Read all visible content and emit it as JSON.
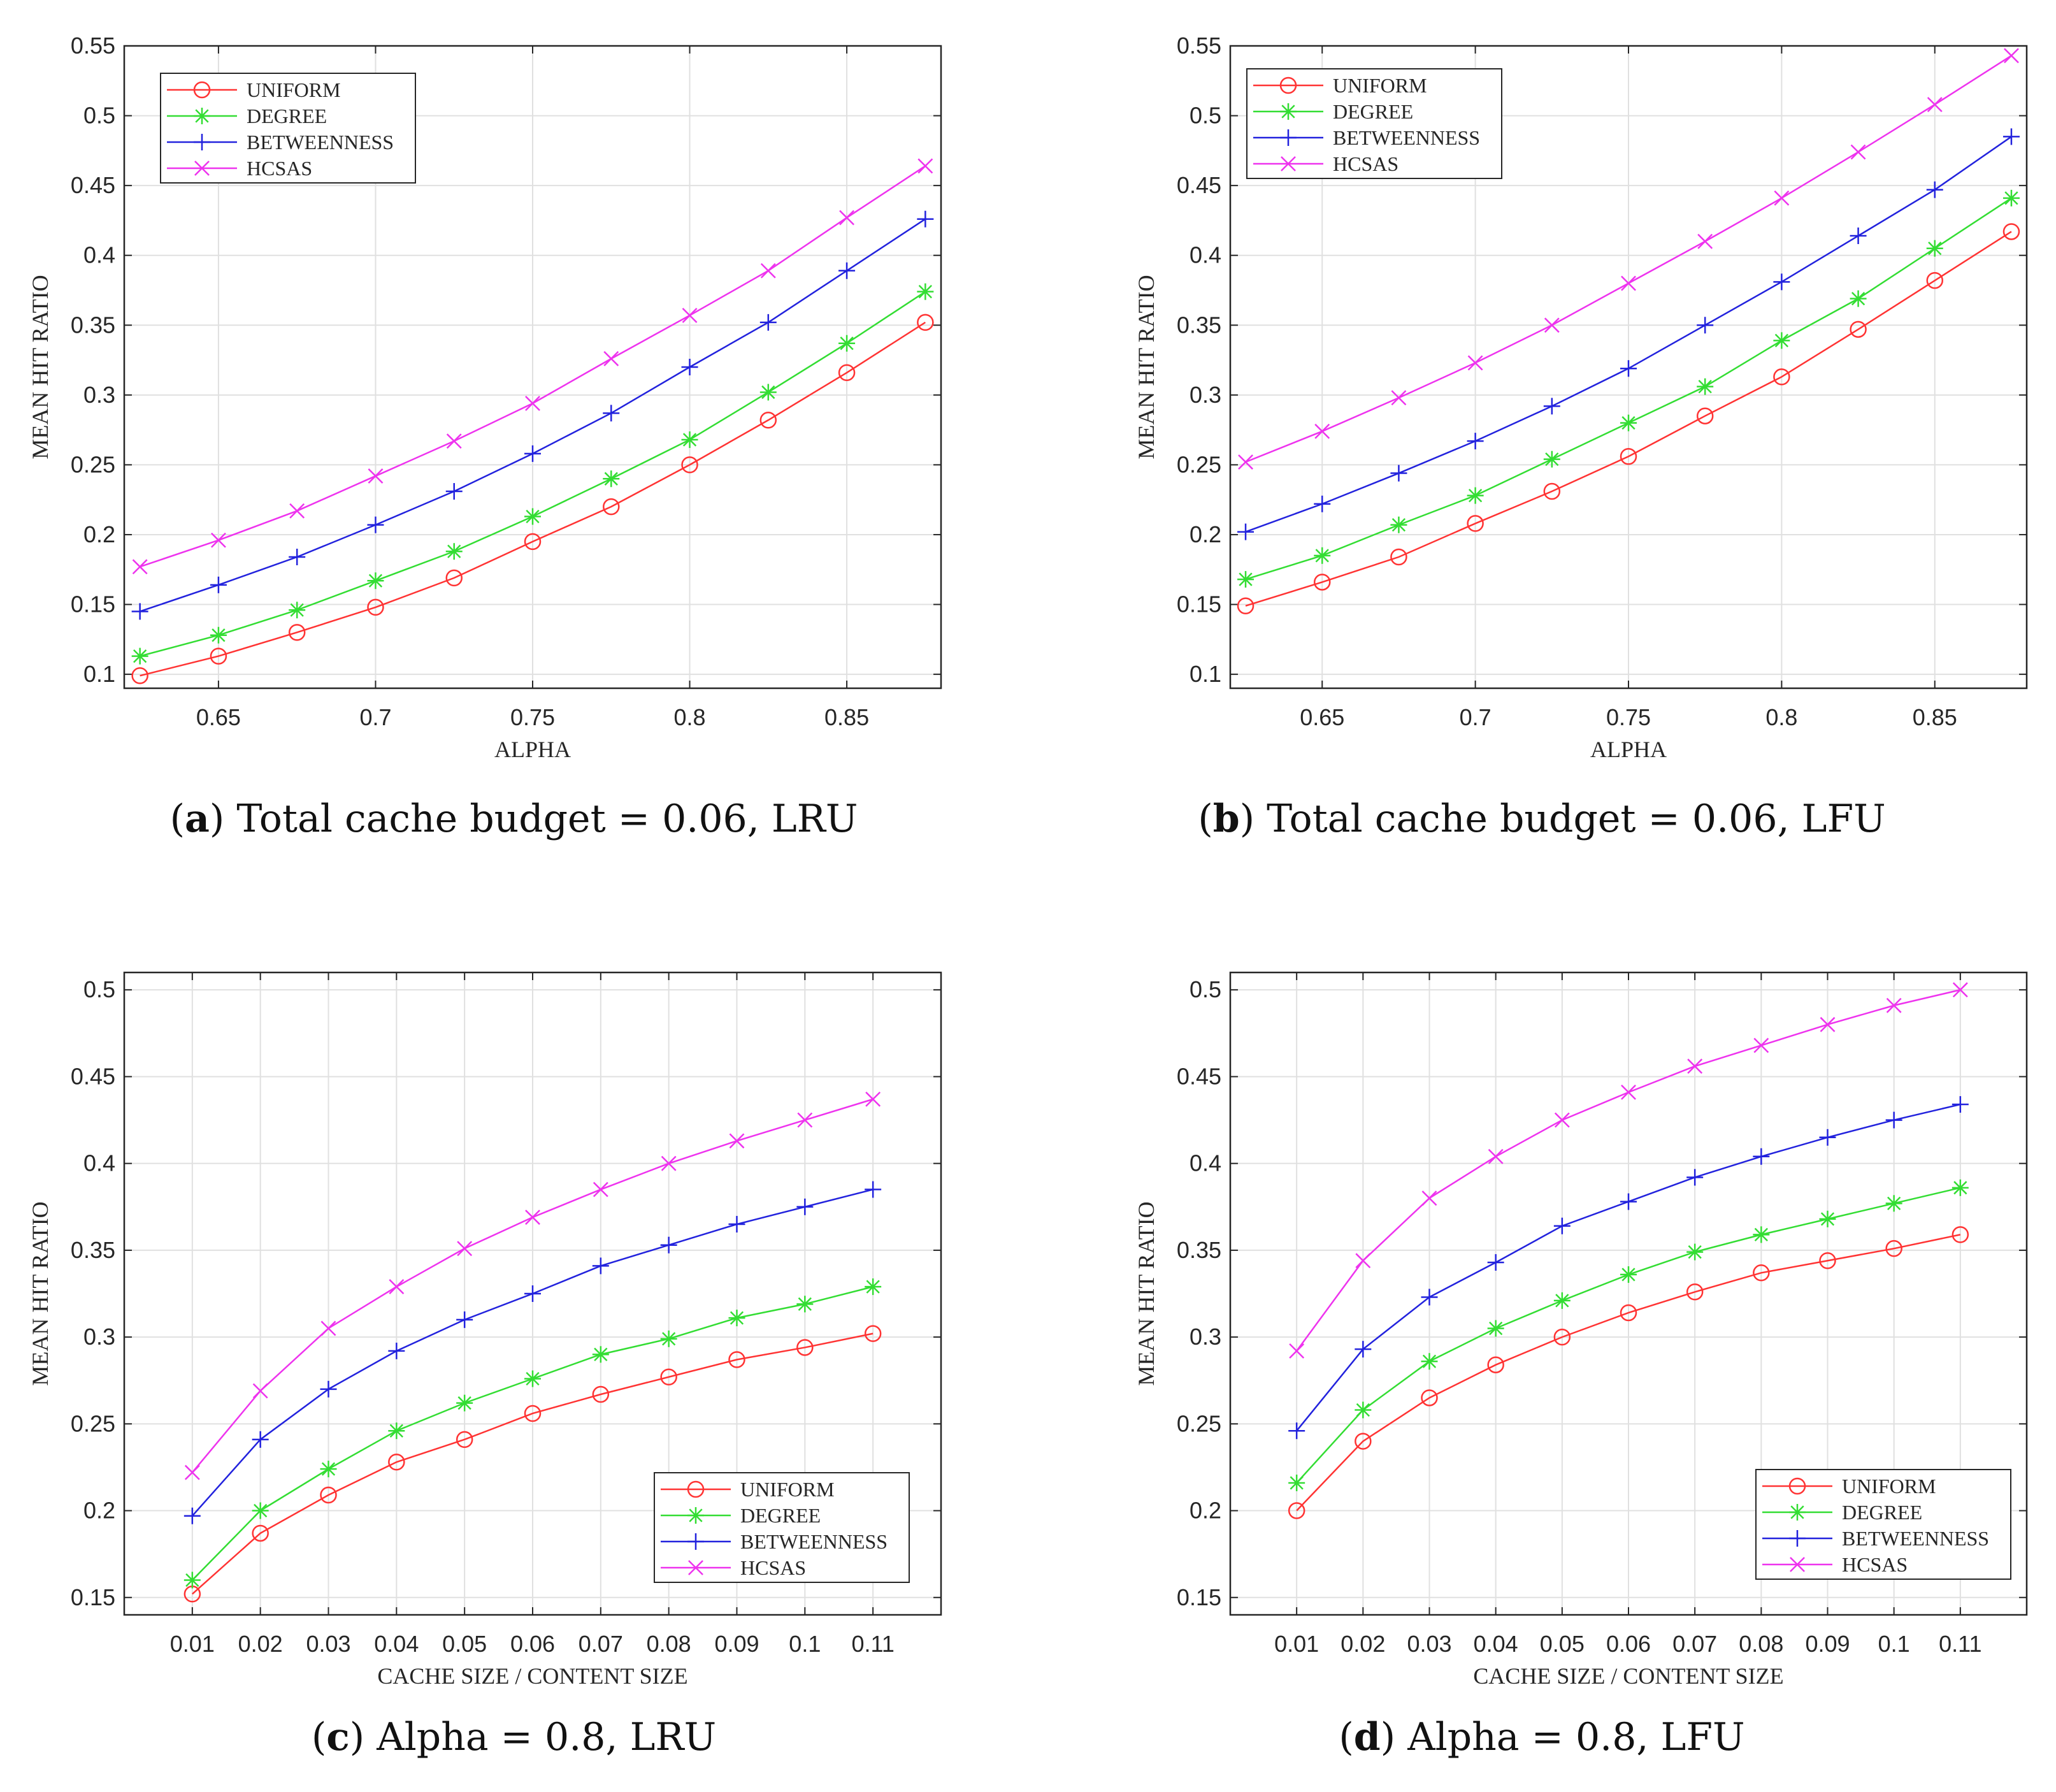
{
  "colors": {
    "UNIFORM": "#ff3333",
    "DEGREE": "#33dd33",
    "BETWEENNESS": "#2222dd",
    "HCSAS": "#ee33ee"
  },
  "chart_data": [
    {
      "id": "a",
      "type": "line",
      "caption": {
        "letter": "a",
        "text": "Total cache budget = 0.06, LRU"
      },
      "xlabel": "ALPHA",
      "ylabel": "MEAN HIT RATIO",
      "xlim": [
        0.62,
        0.88
      ],
      "ylim": [
        0.09,
        0.55
      ],
      "xticks": [
        "0.65",
        "0.7",
        "0.75",
        "0.8",
        "0.85"
      ],
      "yticks": [
        "0.1",
        "0.15",
        "0.2",
        "0.25",
        "0.3",
        "0.35",
        "0.4",
        "0.45",
        "0.5",
        "0.55"
      ],
      "grid": true,
      "legend_position": "top-left",
      "x": [
        0.625,
        0.65,
        0.675,
        0.7,
        0.725,
        0.75,
        0.775,
        0.8,
        0.825,
        0.85,
        0.875
      ],
      "series": [
        {
          "name": "UNIFORM",
          "marker": "circle",
          "values": [
            0.099,
            0.113,
            0.13,
            0.148,
            0.169,
            0.195,
            0.22,
            0.25,
            0.282,
            0.316,
            0.352
          ]
        },
        {
          "name": "DEGREE",
          "marker": "asterisk",
          "values": [
            0.113,
            0.128,
            0.146,
            0.167,
            0.188,
            0.213,
            0.24,
            0.268,
            0.302,
            0.337,
            0.374
          ]
        },
        {
          "name": "BETWEENNESS",
          "marker": "plus",
          "values": [
            0.145,
            0.164,
            0.184,
            0.207,
            0.231,
            0.258,
            0.287,
            0.32,
            0.352,
            0.389,
            0.426
          ]
        },
        {
          "name": "HCSAS",
          "marker": "cross",
          "values": [
            0.177,
            0.196,
            0.217,
            0.242,
            0.267,
            0.294,
            0.326,
            0.357,
            0.389,
            0.427,
            0.464
          ]
        }
      ]
    },
    {
      "id": "b",
      "type": "line",
      "caption": {
        "letter": "b",
        "text": "Total cache budget = 0.06, LFU"
      },
      "xlabel": "ALPHA",
      "ylabel": "MEAN HIT RATIO",
      "xlim": [
        0.62,
        0.88
      ],
      "ylim": [
        0.09,
        0.55
      ],
      "xticks": [
        "0.65",
        "0.7",
        "0.75",
        "0.8",
        "0.85"
      ],
      "yticks": [
        "0.1",
        "0.15",
        "0.2",
        "0.25",
        "0.3",
        "0.35",
        "0.4",
        "0.45",
        "0.5",
        "0.55"
      ],
      "grid": true,
      "legend_position": "top-left",
      "x": [
        0.625,
        0.65,
        0.675,
        0.7,
        0.725,
        0.75,
        0.775,
        0.8,
        0.825,
        0.85,
        0.875
      ],
      "series": [
        {
          "name": "UNIFORM",
          "marker": "circle",
          "values": [
            0.149,
            0.166,
            0.184,
            0.208,
            0.231,
            0.256,
            0.285,
            0.313,
            0.347,
            0.382,
            0.417
          ]
        },
        {
          "name": "DEGREE",
          "marker": "asterisk",
          "values": [
            0.168,
            0.185,
            0.207,
            0.228,
            0.254,
            0.28,
            0.306,
            0.339,
            0.369,
            0.405,
            0.441
          ]
        },
        {
          "name": "BETWEENNESS",
          "marker": "plus",
          "values": [
            0.202,
            0.222,
            0.244,
            0.267,
            0.292,
            0.319,
            0.35,
            0.381,
            0.414,
            0.447,
            0.485
          ]
        },
        {
          "name": "HCSAS",
          "marker": "cross",
          "values": [
            0.252,
            0.274,
            0.298,
            0.323,
            0.35,
            0.38,
            0.41,
            0.441,
            0.474,
            0.508,
            0.543
          ]
        }
      ]
    },
    {
      "id": "c",
      "type": "line",
      "caption": {
        "letter": "c",
        "text": "Alpha = 0.8, LRU"
      },
      "xlabel": "CACHE SIZE / CONTENT SIZE",
      "ylabel": "MEAN HIT RATIO",
      "xlim": [
        0.0,
        0.12
      ],
      "ylim": [
        0.14,
        0.51
      ],
      "xticks": [
        "0.01",
        "0.02",
        "0.03",
        "0.04",
        "0.05",
        "0.06",
        "0.07",
        "0.08",
        "0.09",
        "0.1",
        "0.11"
      ],
      "yticks": [
        "0.15",
        "0.2",
        "0.25",
        "0.3",
        "0.35",
        "0.4",
        "0.45",
        "0.5"
      ],
      "grid": true,
      "legend_position": "bottom-right",
      "x": [
        0.01,
        0.02,
        0.03,
        0.04,
        0.05,
        0.06,
        0.07,
        0.08,
        0.09,
        0.1,
        0.11
      ],
      "series": [
        {
          "name": "UNIFORM",
          "marker": "circle",
          "values": [
            0.152,
            0.187,
            0.209,
            0.228,
            0.241,
            0.256,
            0.267,
            0.277,
            0.287,
            0.294,
            0.302
          ]
        },
        {
          "name": "DEGREE",
          "marker": "asterisk",
          "values": [
            0.16,
            0.2,
            0.224,
            0.246,
            0.262,
            0.276,
            0.29,
            0.299,
            0.311,
            0.319,
            0.329
          ]
        },
        {
          "name": "BETWEENNESS",
          "marker": "plus",
          "values": [
            0.197,
            0.241,
            0.27,
            0.292,
            0.31,
            0.325,
            0.341,
            0.353,
            0.365,
            0.375,
            0.385
          ]
        },
        {
          "name": "HCSAS",
          "marker": "cross",
          "values": [
            0.222,
            0.269,
            0.305,
            0.329,
            0.351,
            0.369,
            0.385,
            0.4,
            0.413,
            0.425,
            0.437
          ]
        }
      ]
    },
    {
      "id": "d",
      "type": "line",
      "caption": {
        "letter": "d",
        "text": "Alpha = 0.8, LFU"
      },
      "xlabel": "CACHE SIZE / CONTENT SIZE",
      "ylabel": "MEAN HIT RATIO",
      "xlim": [
        0.0,
        0.12
      ],
      "ylim": [
        0.14,
        0.51
      ],
      "xticks": [
        "0.01",
        "0.02",
        "0.03",
        "0.04",
        "0.05",
        "0.06",
        "0.07",
        "0.08",
        "0.09",
        "0.1",
        "0.11"
      ],
      "yticks": [
        "0.15",
        "0.2",
        "0.25",
        "0.3",
        "0.35",
        "0.4",
        "0.45",
        "0.5"
      ],
      "grid": true,
      "legend_position": "bottom-right",
      "x": [
        0.01,
        0.02,
        0.03,
        0.04,
        0.05,
        0.06,
        0.07,
        0.08,
        0.09,
        0.1,
        0.11
      ],
      "series": [
        {
          "name": "UNIFORM",
          "marker": "circle",
          "values": [
            0.2,
            0.24,
            0.265,
            0.284,
            0.3,
            0.314,
            0.326,
            0.337,
            0.344,
            0.351,
            0.359
          ]
        },
        {
          "name": "DEGREE",
          "marker": "asterisk",
          "values": [
            0.216,
            0.258,
            0.286,
            0.305,
            0.321,
            0.336,
            0.349,
            0.359,
            0.368,
            0.377,
            0.386
          ]
        },
        {
          "name": "BETWEENNESS",
          "marker": "plus",
          "values": [
            0.246,
            0.293,
            0.323,
            0.343,
            0.364,
            0.378,
            0.392,
            0.404,
            0.415,
            0.425,
            0.434
          ]
        },
        {
          "name": "HCSAS",
          "marker": "cross",
          "values": [
            0.292,
            0.344,
            0.38,
            0.404,
            0.425,
            0.441,
            0.456,
            0.468,
            0.48,
            0.491,
            0.5
          ]
        }
      ]
    }
  ]
}
